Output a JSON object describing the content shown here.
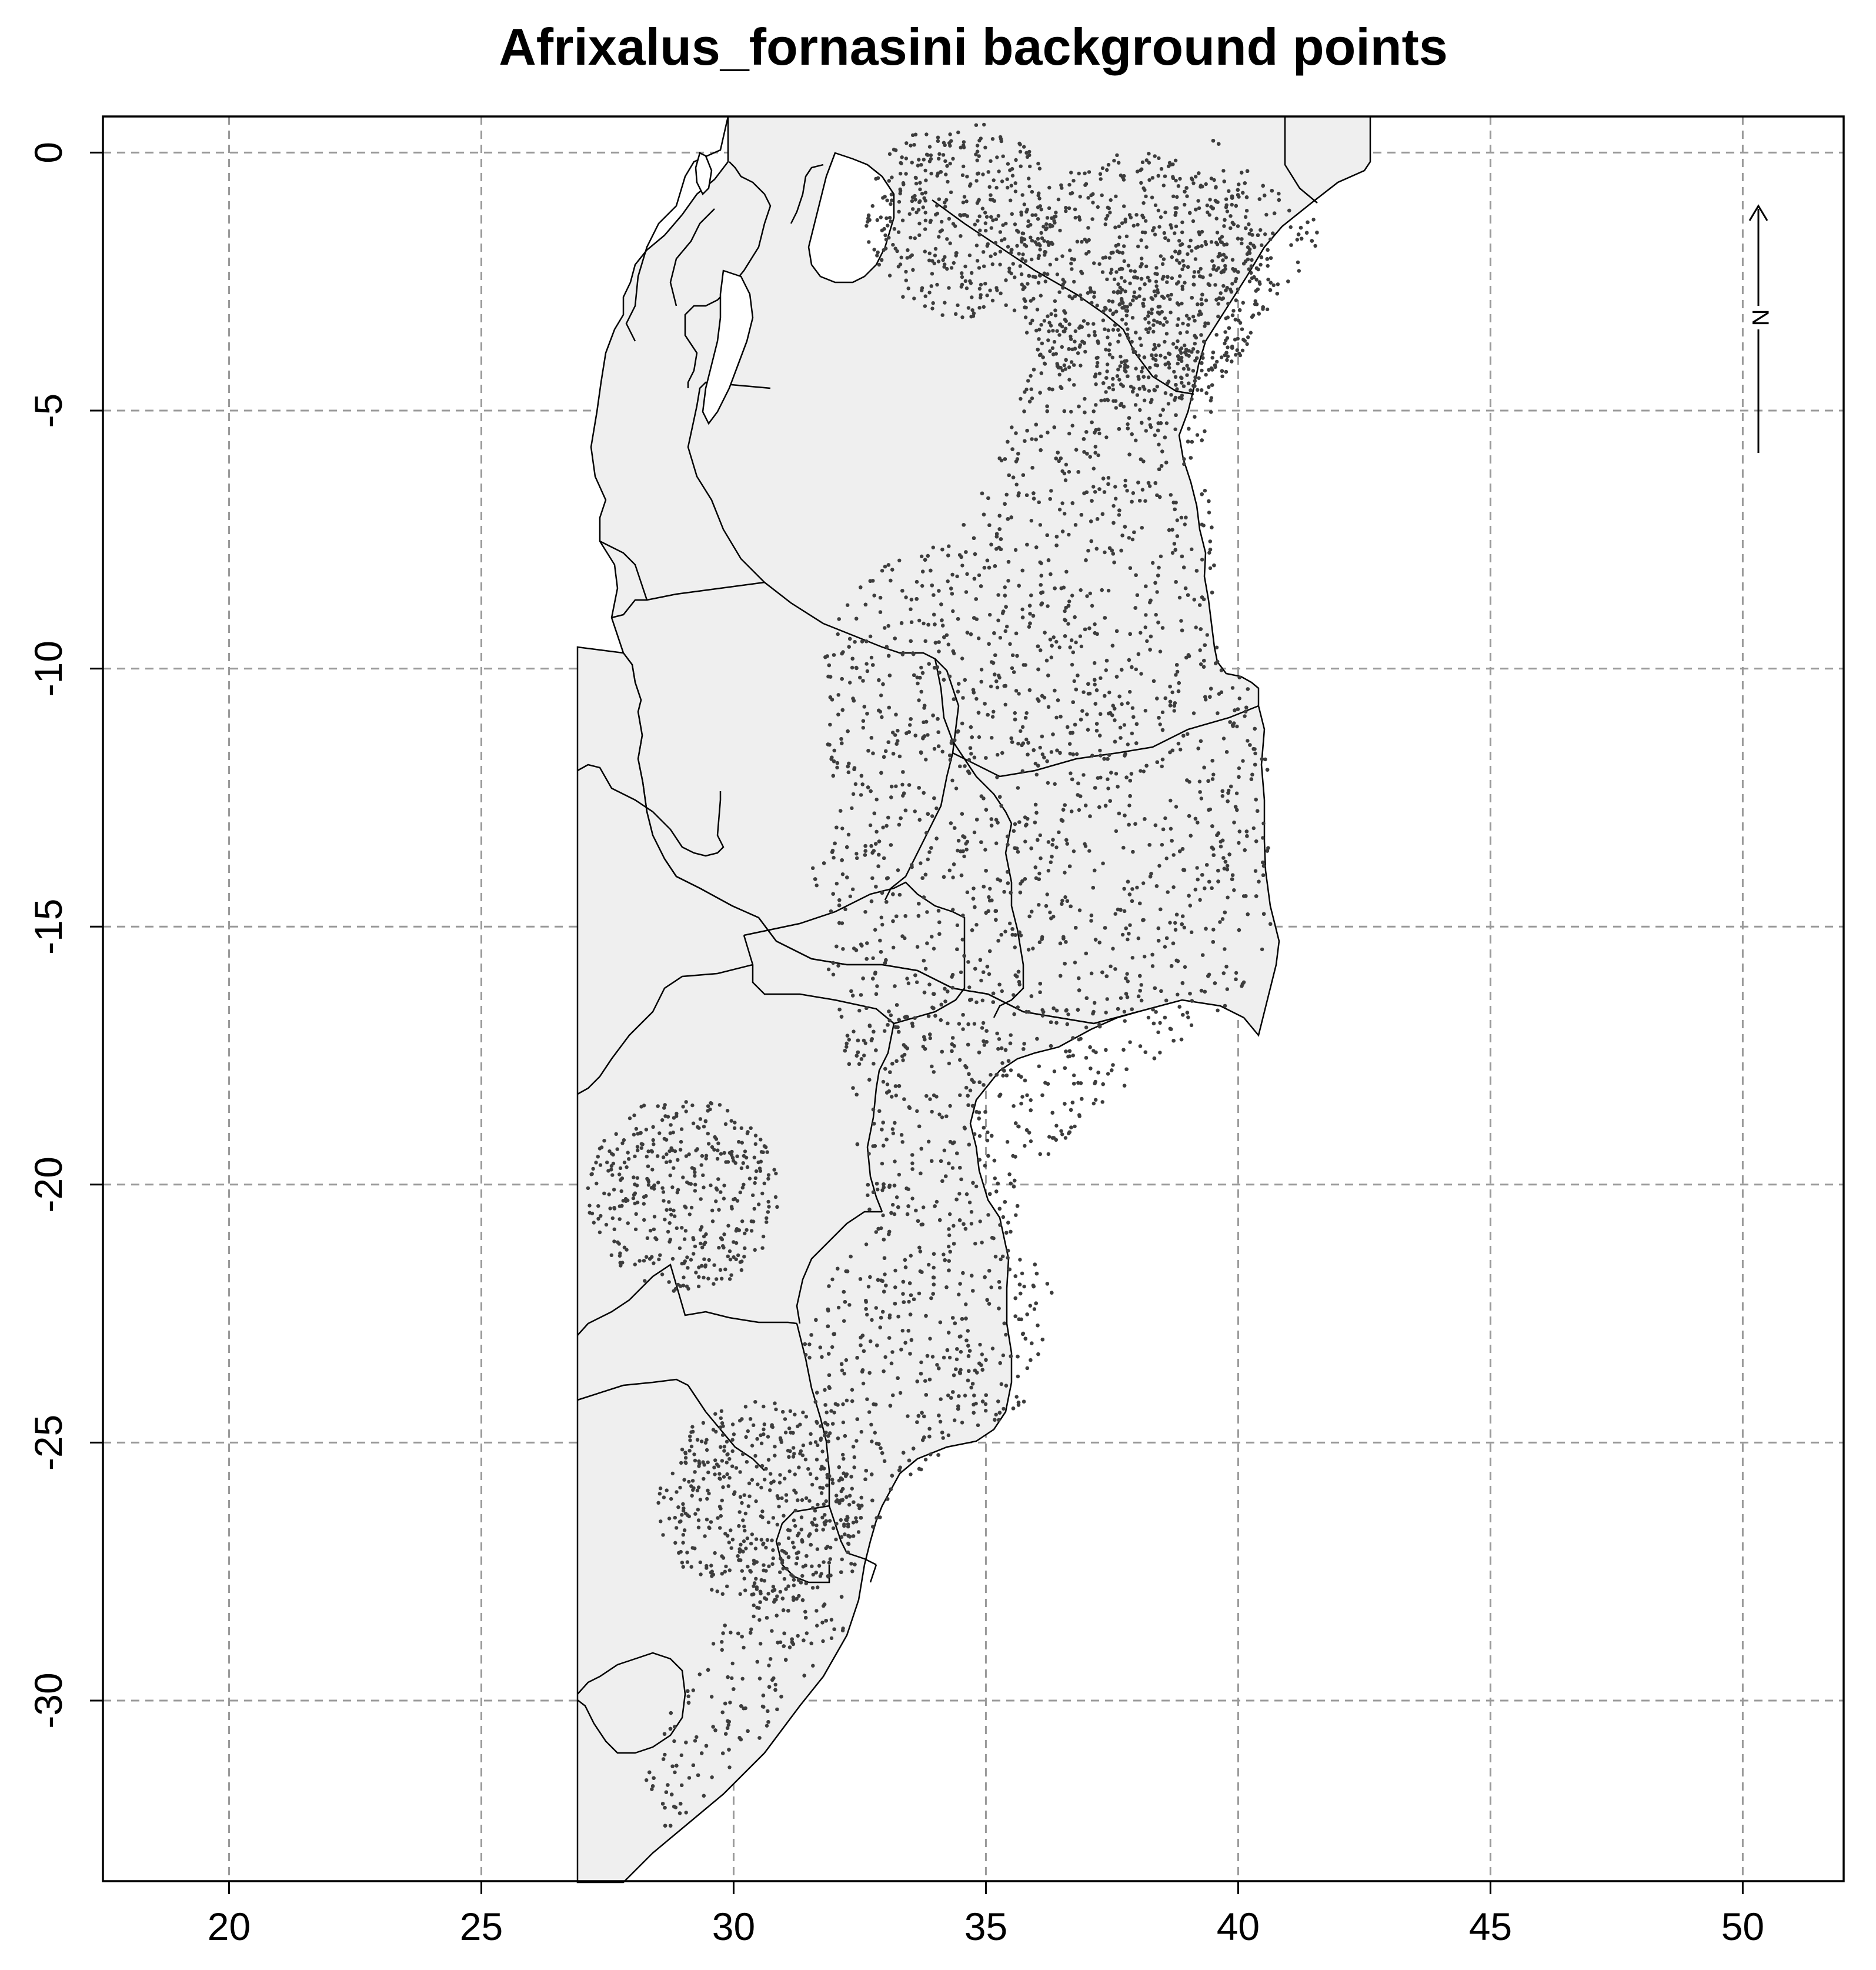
{
  "title": "Afrixalus_fornasini background points",
  "north_label": "N",
  "colors": {
    "land": "#efefef",
    "points": "#3d3d3d",
    "grid": "#9a9a9a"
  },
  "grid": true,
  "axes": {
    "x": {
      "range": [
        17.5,
        52.0
      ],
      "ticks": [
        20,
        25,
        30,
        35,
        40,
        45,
        50
      ],
      "tick_labels": [
        "20",
        "25",
        "30",
        "35",
        "40",
        "45",
        "50"
      ]
    },
    "y": {
      "range": [
        -33.5,
        0.7
      ],
      "ticks": [
        0,
        -5,
        -10,
        -15,
        -20,
        -25,
        -30
      ],
      "tick_labels": [
        "0",
        "-5",
        "-10",
        "-15",
        "-20",
        "-25",
        "-30"
      ]
    }
  },
  "chart_data": {
    "type": "scatter",
    "title": "Afrixalus_fornasini background points",
    "xlabel": "",
    "ylabel": "",
    "xlim": [
      17.5,
      52.0
    ],
    "ylim": [
      -33.5,
      0.7
    ],
    "grid": true,
    "points_description_regions": [
      {
        "center": [
          34.5,
          -1.3
        ],
        "radius_deg": 1.9
      },
      {
        "center": [
          38.0,
          -2.5
        ],
        "radius_deg": 2.5
      },
      {
        "center": [
          29.0,
          -20.2
        ],
        "radius_deg": 1.9
      },
      {
        "center": [
          30.5,
          -26.2
        ],
        "radius_deg": 2.0
      }
    ]
  }
}
